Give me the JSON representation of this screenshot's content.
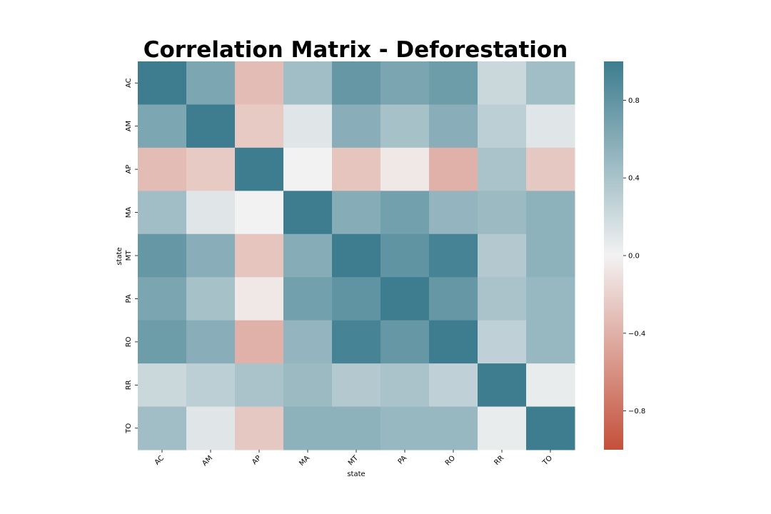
{
  "chart_data": {
    "type": "heatmap",
    "title": "Correlation Matrix - Deforestation",
    "xlabel": "state",
    "ylabel": "state",
    "x_categories": [
      "AC",
      "AM",
      "AP",
      "MA",
      "MT",
      "PA",
      "RO",
      "RR",
      "TO"
    ],
    "y_categories": [
      "AC",
      "AM",
      "AP",
      "MA",
      "MT",
      "PA",
      "RO",
      "RR",
      "TO"
    ],
    "values": [
      [
        1.0,
        0.65,
        -0.33,
        0.45,
        0.78,
        0.66,
        0.73,
        0.22,
        0.45
      ],
      [
        0.65,
        1.0,
        -0.25,
        0.1,
        0.58,
        0.42,
        0.58,
        0.3,
        0.1
      ],
      [
        -0.33,
        -0.25,
        1.0,
        0.0,
        -0.28,
        -0.06,
        -0.4,
        0.4,
        -0.26
      ],
      [
        0.45,
        0.1,
        0.0,
        1.0,
        0.6,
        0.7,
        0.52,
        0.48,
        0.55
      ],
      [
        0.78,
        0.58,
        -0.28,
        0.6,
        1.0,
        0.8,
        0.95,
        0.35,
        0.55
      ],
      [
        0.66,
        0.42,
        -0.06,
        0.7,
        0.8,
        1.0,
        0.78,
        0.4,
        0.5
      ],
      [
        0.73,
        0.58,
        -0.4,
        0.52,
        0.95,
        0.78,
        1.0,
        0.28,
        0.5
      ],
      [
        0.22,
        0.3,
        0.4,
        0.48,
        0.35,
        0.4,
        0.28,
        1.0,
        0.05
      ],
      [
        0.45,
        0.1,
        -0.26,
        0.55,
        0.55,
        0.5,
        0.5,
        0.05,
        1.0
      ]
    ],
    "colorbar": {
      "range": [
        -1,
        1
      ],
      "ticks": [
        0.8,
        0.4,
        0.0,
        -0.4,
        -0.8
      ],
      "tick_labels": [
        "0.8",
        "0.4",
        "0.0",
        "−0.4",
        "−0.8"
      ]
    },
    "colors": {
      "negative": "#c4503a",
      "neutral": "#f2f2f2",
      "positive": "#3d7d8f"
    },
    "grid": false,
    "legend": "colorbar-right"
  }
}
